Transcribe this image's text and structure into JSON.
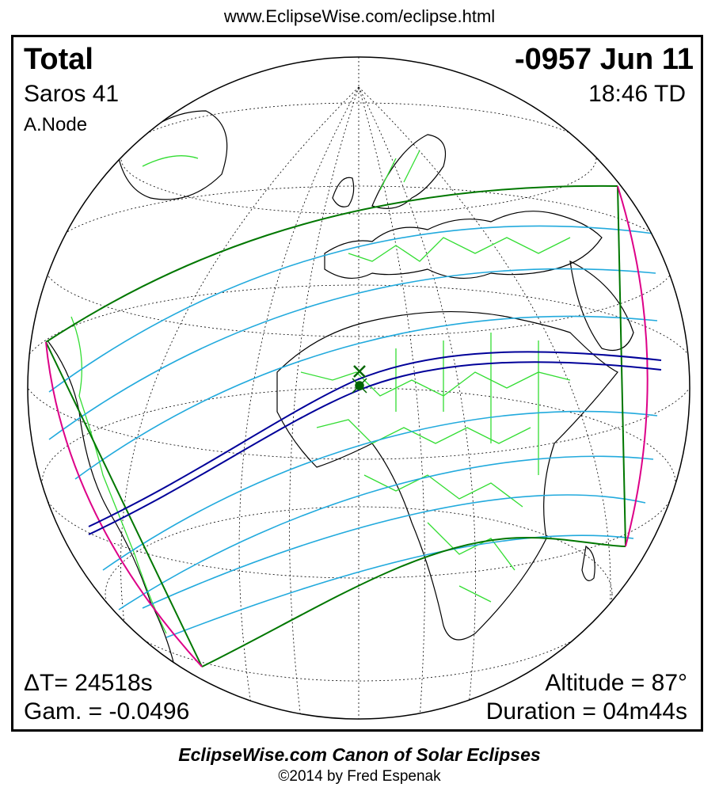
{
  "header": {
    "url": "www.EclipseWise.com/eclipse.html"
  },
  "eclipse": {
    "type": "Total",
    "date": "-0957 Jun 11",
    "saros": "Saros  41",
    "time": "18:46 TD",
    "node": "A.Node",
    "delta_t": "ΔT=  24518s",
    "gamma": "Gam. = -0.0496",
    "altitude": "Altitude = 87°",
    "duration": "Duration = 04m44s"
  },
  "footer": {
    "title": "EclipseWise.com Canon of Solar Eclipses",
    "copyright": "©2014 by Fred Espenak"
  },
  "colors": {
    "globe": "#000000",
    "graticule": "#000000",
    "coastline": "#000000",
    "borders": "#33dd33",
    "penumbra_limits": "#007700",
    "magnitude_lines": "#22aadd",
    "central_path": "#000099",
    "sunrise_sunset": "#dd0088",
    "greatest_eclipse": "#006600"
  }
}
